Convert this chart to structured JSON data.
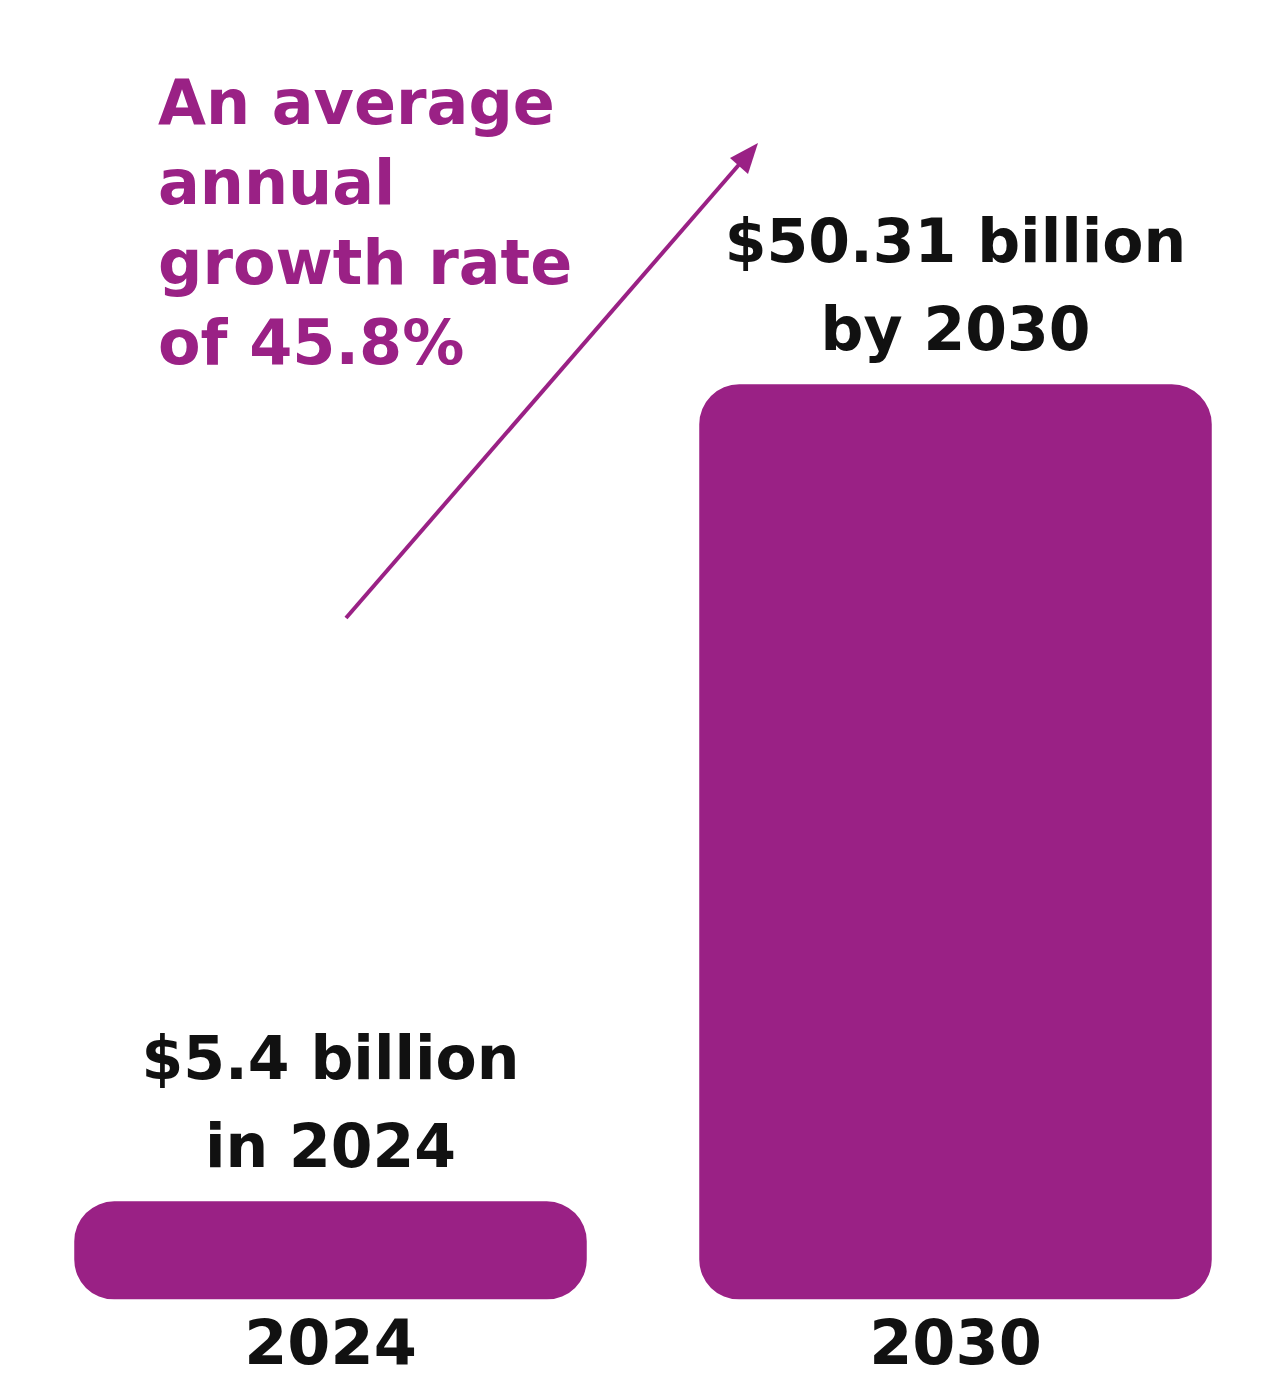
{
  "chart_data": {
    "type": "bar",
    "categories": [
      "2024",
      "2030"
    ],
    "values": [
      5.4,
      50.31
    ],
    "color": "#9a2185",
    "value_labels": [
      "$5.4 billion",
      "$50.31 billion"
    ],
    "annotations": [
      "An average annual growth rate of 45.8%",
      {
        "text": "in 2024",
        "x": "2024",
        "y": 5.4
      },
      {
        "text": "by 2030",
        "x": "2030",
        "y": 50.31
      }
    ],
    "tick_labels": "x"
  }
}
